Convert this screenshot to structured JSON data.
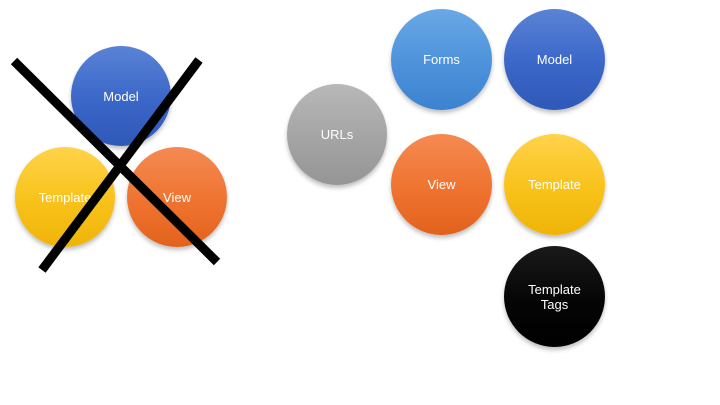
{
  "left_group": {
    "model": "Model",
    "template": "Template",
    "view": "View"
  },
  "right_group": {
    "forms": "Forms",
    "model": "Model",
    "urls": "URLs",
    "view": "View",
    "template": "Template",
    "template_tags": "Template\nTags"
  },
  "colors": {
    "model": "#3a66c8",
    "forms": "#4d92da",
    "view": "#ef7330",
    "template": "#f8c21a",
    "urls": "#a4a4a4",
    "template_tags": "#000000",
    "cross": "#000000"
  }
}
